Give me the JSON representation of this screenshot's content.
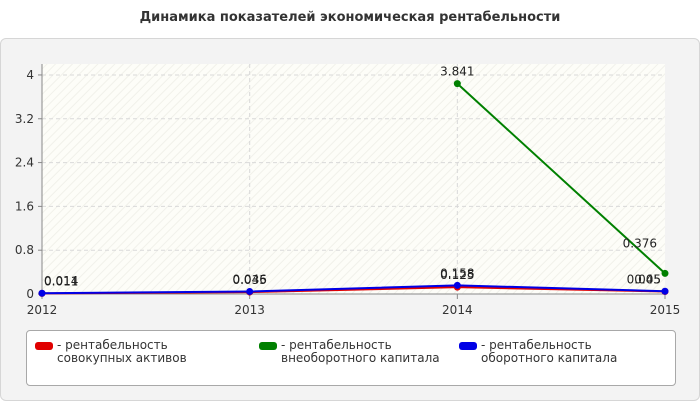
{
  "title": "Динамика показателей экономическая рентабельности",
  "chart_data": {
    "type": "line",
    "title": "Динамика показателей экономическая рентабельности",
    "x": [
      "2012",
      "2013",
      "2014",
      "2015"
    ],
    "y_ticks": [
      "0",
      "0.8",
      "1.6",
      "2.4",
      "3.2",
      "4"
    ],
    "ylim": [
      0,
      4.2
    ],
    "grid": true,
    "legend_position": "bottom",
    "series": [
      {
        "name": "- рентабельность совокупных активов",
        "color": "#e00000",
        "values": [
          0.011,
          0.035,
          0.125,
          0.045
        ],
        "labels": [
          "0.011",
          "0.035",
          "0.125",
          "0.045"
        ]
      },
      {
        "name": "- рентабельность внеоборотного капитала",
        "color": "#008000",
        "values": [
          null,
          null,
          3.841,
          0.376
        ],
        "labels": [
          "",
          "",
          "3.841",
          "0.376"
        ]
      },
      {
        "name": "- рентабельность оборотного капитала",
        "color": "#0000e6",
        "values": [
          0.014,
          0.046,
          0.158,
          0.05
        ],
        "labels": [
          "0.014",
          "0.046",
          "0.158",
          "0.05"
        ]
      }
    ]
  }
}
